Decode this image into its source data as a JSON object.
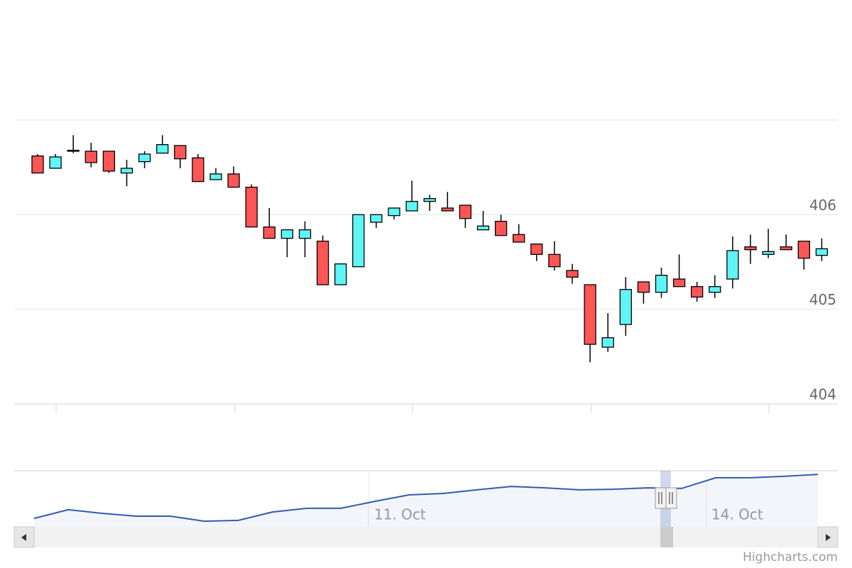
{
  "chart_data": {
    "type": "candlestick",
    "up_color": "#5ff5f5",
    "down_color": "#ff5555",
    "ylim": [
      404,
      407
    ],
    "yticks": [
      404,
      405,
      406
    ],
    "grid": true,
    "open": [
      406.62,
      406.49,
      406.67,
      406.67,
      406.67,
      406.44,
      406.56,
      406.65,
      406.73,
      406.6,
      406.37,
      406.43,
      406.29,
      405.87,
      405.75,
      405.75,
      405.72,
      405.26,
      405.45,
      405.92,
      405.99,
      406.04,
      406.14,
      406.07,
      406.1,
      405.84,
      405.93,
      405.79,
      405.69,
      405.58,
      405.41,
      405.26,
      404.6,
      404.84,
      405.29,
      405.18,
      405.32,
      405.24,
      405.18,
      405.32,
      405.66,
      405.58,
      405.66,
      405.72,
      405.57
    ],
    "high": [
      406.64,
      406.64,
      406.84,
      406.76,
      406.67,
      406.58,
      406.67,
      406.84,
      406.73,
      406.64,
      406.49,
      406.51,
      406.32,
      406.07,
      405.84,
      405.93,
      405.78,
      405.48,
      406.0,
      406.0,
      406.07,
      406.36,
      406.21,
      406.24,
      406.1,
      406.04,
      406.0,
      405.9,
      405.69,
      405.72,
      405.48,
      405.26,
      404.96,
      405.34,
      405.29,
      405.44,
      405.58,
      405.29,
      405.36,
      405.77,
      405.79,
      405.85,
      405.79,
      405.72,
      405.75
    ],
    "low": [
      406.44,
      406.49,
      406.65,
      406.5,
      406.44,
      406.3,
      406.49,
      406.65,
      406.49,
      406.35,
      406.37,
      406.29,
      405.87,
      405.75,
      405.55,
      405.55,
      405.26,
      405.26,
      405.45,
      405.86,
      405.95,
      406.04,
      406.04,
      406.04,
      405.86,
      405.84,
      405.78,
      405.71,
      405.51,
      405.41,
      405.27,
      404.44,
      404.55,
      404.72,
      405.06,
      405.12,
      405.24,
      405.08,
      405.12,
      405.22,
      405.48,
      405.54,
      405.63,
      405.42,
      405.51
    ],
    "close": [
      406.44,
      406.61,
      406.68,
      406.55,
      406.46,
      406.49,
      406.64,
      406.74,
      406.59,
      406.35,
      406.43,
      406.29,
      405.87,
      405.75,
      405.84,
      405.84,
      405.26,
      405.48,
      406.0,
      406.0,
      406.07,
      406.14,
      406.17,
      406.04,
      405.96,
      405.88,
      405.78,
      405.71,
      405.58,
      405.45,
      405.34,
      404.63,
      404.7,
      405.21,
      405.18,
      405.36,
      405.24,
      405.13,
      405.24,
      405.62,
      405.63,
      405.61,
      405.63,
      405.54,
      405.64
    ],
    "navigator": {
      "color": "#335cad",
      "ylim": [
        404,
        406
      ],
      "values": [
        404.3,
        404.61,
        404.48,
        404.38,
        404.38,
        404.2,
        404.23,
        404.53,
        404.66,
        404.66,
        404.91,
        405.14,
        405.19,
        405.32,
        405.44,
        405.39,
        405.32,
        405.34,
        405.39,
        405.37,
        405.75,
        405.75,
        405.8,
        405.87
      ],
      "labels": [
        "11. Oct",
        "14. Oct"
      ]
    },
    "credits": "Highcharts.com"
  }
}
